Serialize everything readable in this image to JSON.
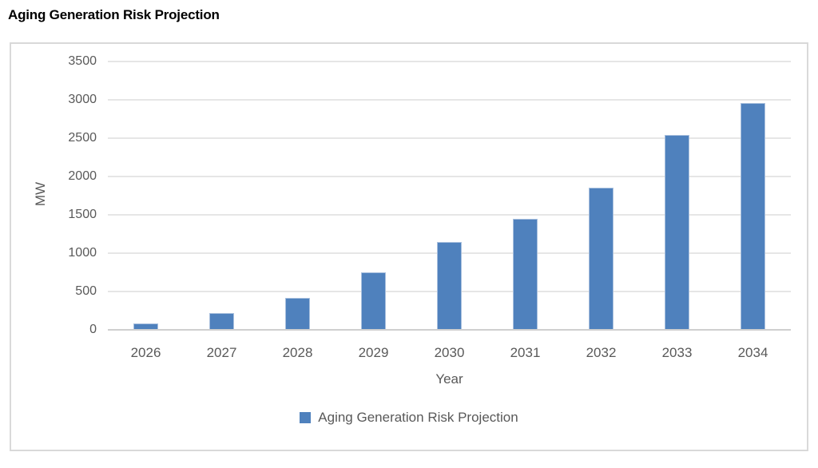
{
  "page_title": "Aging Generation Risk Projection",
  "colors": {
    "bar_fill": "#4f81bd",
    "bar_border": "#a9c0de",
    "gridline": "#e6e6e6",
    "axis_line": "#cfcfcf",
    "frame_border": "#d9d9d9",
    "tick_text": "#595959",
    "title_text": "#000000"
  },
  "chart_data": {
    "type": "bar",
    "title": "Aging Generation Risk Projection",
    "categories": [
      "2026",
      "2027",
      "2028",
      "2029",
      "2030",
      "2031",
      "2032",
      "2033",
      "2034"
    ],
    "values": [
      80,
      220,
      420,
      750,
      1150,
      1450,
      1850,
      2540,
      2960
    ],
    "xlabel": "Year",
    "ylabel": "MW",
    "ylim": [
      0,
      3500
    ],
    "yticks": [
      0,
      500,
      1000,
      1500,
      2000,
      2500,
      3000,
      3500
    ],
    "grid": true,
    "legend": {
      "position": "bottom",
      "label": "Aging Generation Risk Projection"
    }
  }
}
